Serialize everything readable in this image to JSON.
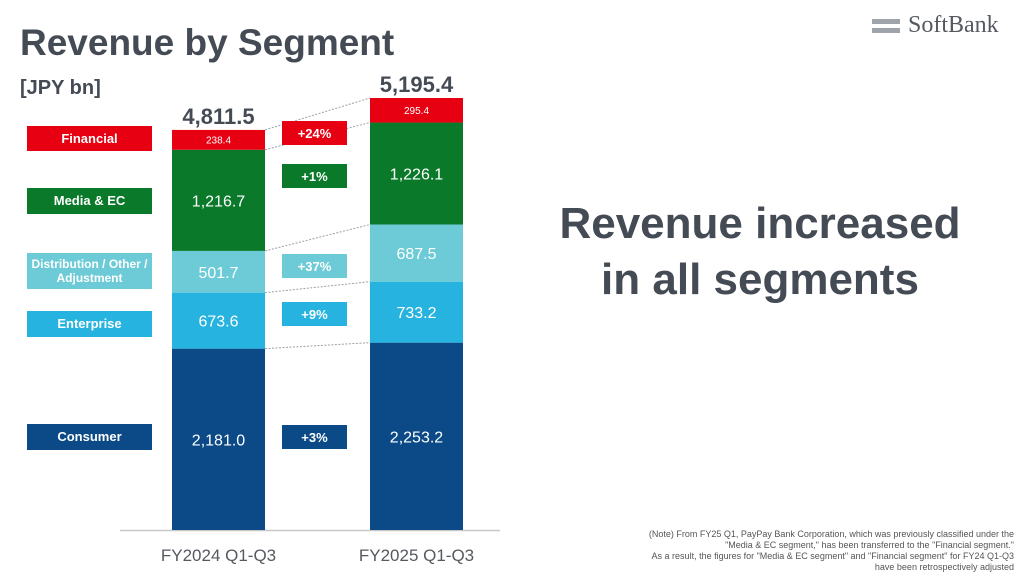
{
  "header": {
    "title": "Revenue by Segment",
    "unit": "[JPY bn]",
    "logo_text": "SoftBank",
    "logo_icon": "softbank-bars-icon"
  },
  "headline": {
    "line1": "Revenue increased",
    "line2": "in all segments"
  },
  "note": {
    "lines": [
      "(Note) From FY25 Q1, PayPay Bank Corporation, which was previously classified under the",
      "\"Media & EC segment,\" has been transferred to the \"Financial segment.\"",
      "As a result, the figures for \"Media & EC segment\" and \"Financial segment\" for FY24 Q1-Q3",
      "have been retrospectively adjusted"
    ]
  },
  "colors": {
    "financial": "#e60012",
    "media_ec": "#0a7a2a",
    "distribution": "#6ccbd6",
    "enterprise": "#27b3e0",
    "consumer": "#0b4a86",
    "text": "#444b54"
  },
  "chart_data": {
    "type": "bar",
    "stacked": true,
    "title": "Revenue by Segment",
    "ylabel": "[JPY bn]",
    "xlabel": "",
    "categories": [
      "FY2024 Q1-Q3",
      "FY2025 Q1-Q3"
    ],
    "totals": [
      "4,811.5",
      "5,195.4"
    ],
    "total_values": [
      4811.5,
      5195.4
    ],
    "ylim": [
      0,
      5195.4
    ],
    "grid": false,
    "legend_position": "left",
    "series": [
      {
        "name": "Consumer",
        "key": "consumer",
        "values": [
          2181.0,
          2253.2
        ],
        "labels": [
          "2,181.0",
          "2,253.2"
        ],
        "change": "+3%"
      },
      {
        "name": "Enterprise",
        "key": "enterprise",
        "values": [
          673.6,
          733.2
        ],
        "labels": [
          "673.6",
          "733.2"
        ],
        "change": "+9%"
      },
      {
        "name": "Distribution / Other / Adjustment",
        "key": "distribution",
        "values": [
          501.7,
          687.5
        ],
        "labels": [
          "501.7",
          "687.5"
        ],
        "change": "+37%"
      },
      {
        "name": "Media & EC",
        "key": "media_ec",
        "values": [
          1216.7,
          1226.1
        ],
        "labels": [
          "1,216.7",
          "1,226.1"
        ],
        "change": "+1%"
      },
      {
        "name": "Financial",
        "key": "financial",
        "values": [
          238.4,
          295.4
        ],
        "labels": [
          "238.4",
          "295.4"
        ],
        "change": "+24%"
      }
    ]
  }
}
